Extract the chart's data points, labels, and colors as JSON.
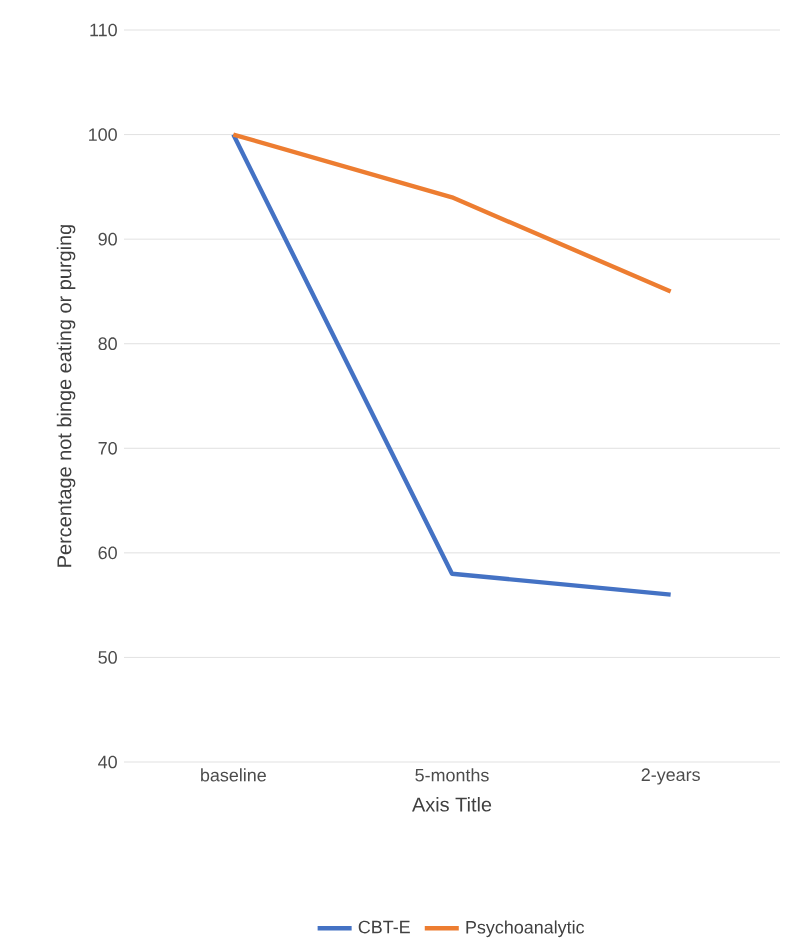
{
  "chart_data": {
    "type": "line",
    "xlabel": "Axis Title",
    "ylabel": "Percentage not binge eating or purging",
    "categories": [
      "baseline",
      "5-months",
      "2-years"
    ],
    "series": [
      {
        "name": "CBT-E",
        "color": "#4472c4",
        "values": [
          100,
          58,
          56
        ]
      },
      {
        "name": "Psychoanalytic",
        "color": "#ed7d31",
        "values": [
          100,
          94,
          85
        ]
      }
    ],
    "ylim": [
      40,
      110
    ],
    "yticks": [
      40,
      50,
      60,
      70,
      80,
      90,
      100,
      110
    ],
    "grid": "y",
    "legend": "bottom",
    "marker": "none",
    "line_style": "solid"
  }
}
